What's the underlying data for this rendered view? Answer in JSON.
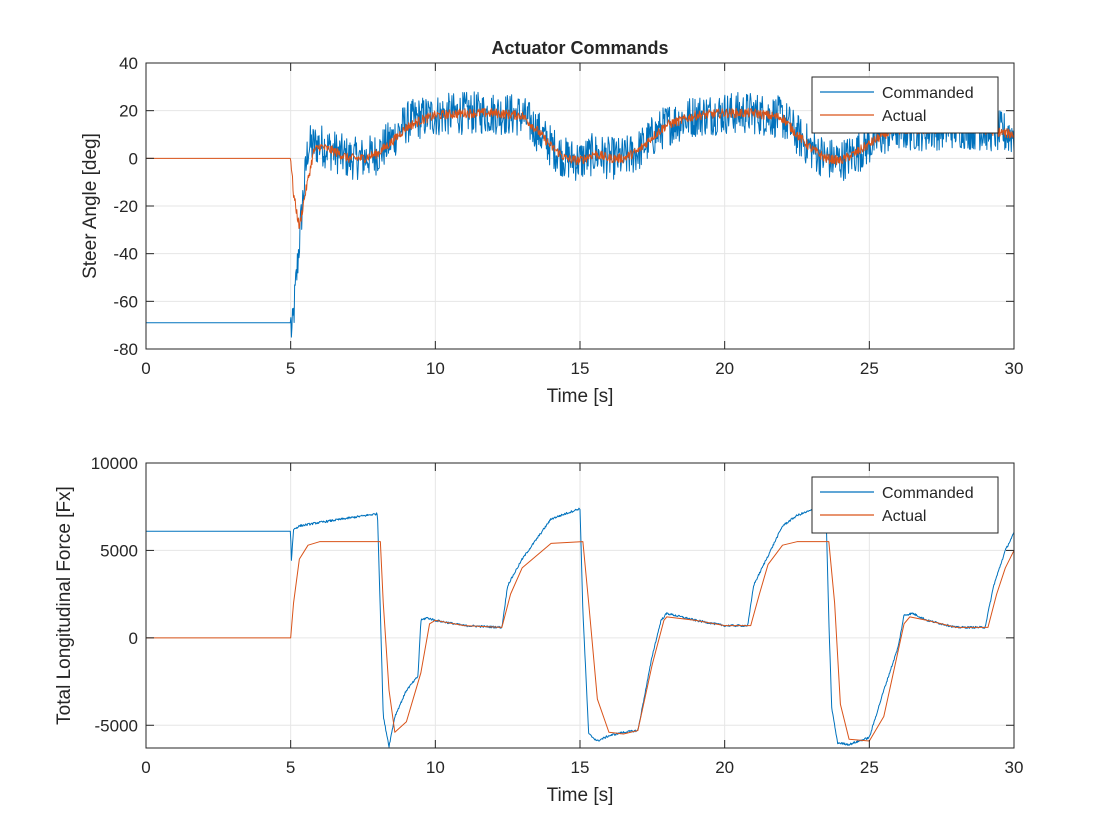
{
  "chart_data": [
    {
      "type": "line",
      "title": "Actuator Commands",
      "xlabel": "Time [s]",
      "ylabel": "Steer Angle [deg]",
      "xlim": [
        0,
        30
      ],
      "ylim": [
        -80,
        40
      ],
      "xticks": [
        "0",
        "5",
        "10",
        "15",
        "20",
        "25",
        "30"
      ],
      "yticks": [
        "-80",
        "-60",
        "-40",
        "-20",
        "0",
        "20",
        "40"
      ],
      "grid": true,
      "legend_position": "top-right",
      "series": [
        {
          "name": "Commanded",
          "color": "#0072bd",
          "x": [
            0,
            5,
            5.05,
            5.2,
            5.4,
            5.6,
            6,
            6.5,
            7,
            7.5,
            8,
            8.5,
            9,
            9.5,
            10,
            11,
            12,
            13,
            13.5,
            14,
            14.5,
            15,
            15.5,
            16,
            16.5,
            17,
            17.5,
            18,
            19,
            20,
            21,
            22,
            22.5,
            23,
            23.5,
            24,
            24.5,
            25,
            25.5,
            26,
            27,
            28,
            29,
            30
          ],
          "y": [
            -69,
            -69,
            -74,
            -50,
            -20,
            5,
            6,
            3,
            0,
            0,
            2,
            8,
            15,
            17,
            18,
            19,
            19,
            18,
            12,
            5,
            0,
            -1,
            2,
            0,
            0,
            3,
            9,
            14,
            18,
            19,
            19,
            17,
            10,
            4,
            0,
            -1,
            2,
            6,
            10,
            12,
            12,
            13,
            12,
            10
          ],
          "noise_amplitude": 9
        },
        {
          "name": "Actual",
          "color": "#d95319",
          "x": [
            0,
            5,
            5.1,
            5.3,
            5.5,
            5.8,
            6,
            6.5,
            7,
            7.5,
            8,
            8.5,
            9,
            9.5,
            10,
            11,
            12,
            13,
            13.5,
            14,
            14.5,
            15,
            15.5,
            16,
            16.5,
            17,
            17.5,
            18,
            19,
            20,
            21,
            22,
            22.5,
            23,
            23.5,
            24,
            24.5,
            25,
            25.5,
            26,
            27,
            28,
            29,
            30
          ],
          "y": [
            0,
            0,
            -15,
            -29,
            -15,
            3,
            5,
            3,
            0,
            0,
            2,
            7,
            13,
            16,
            18,
            19,
            19,
            18,
            12,
            5,
            0,
            -1,
            2,
            0,
            0,
            3,
            9,
            14,
            18,
            19,
            19,
            17,
            10,
            4,
            0,
            -1,
            2,
            6,
            10,
            12,
            12,
            13,
            12,
            10
          ],
          "noise_amplitude": 2
        }
      ]
    },
    {
      "type": "line",
      "title": "",
      "xlabel": "Time [s]",
      "ylabel": "Total Longitudinal Force [Fx]",
      "xlim": [
        0,
        30
      ],
      "ylim": [
        -6300,
        10000
      ],
      "xticks": [
        "0",
        "5",
        "10",
        "15",
        "20",
        "25",
        "30"
      ],
      "yticks": [
        "-5000",
        "0",
        "5000",
        "10000"
      ],
      "grid": true,
      "legend_position": "top-right",
      "series": [
        {
          "name": "Commanded",
          "color": "#0072bd",
          "x": [
            0,
            5,
            5.02,
            5.1,
            5.3,
            6,
            7,
            8,
            8.1,
            8.2,
            8.4,
            8.6,
            9.0,
            9.4,
            9.5,
            9.7,
            10,
            11,
            12.3,
            12.5,
            13,
            14,
            15,
            15.1,
            15.3,
            15.6,
            16,
            16.5,
            17.0,
            17.5,
            17.8,
            18,
            19,
            20,
            20.8,
            21.0,
            21.5,
            22,
            22.5,
            23,
            23.5,
            23.6,
            23.7,
            23.9,
            24.3,
            25,
            25.5,
            26,
            26.2,
            26.5,
            27,
            28,
            29.0,
            29.3,
            29.7,
            30
          ],
          "y": [
            6100,
            6100,
            4300,
            6200,
            6400,
            6600,
            6850,
            7100,
            1500,
            -4500,
            -6200,
            -4500,
            -3000,
            -2200,
            1000,
            1150,
            1000,
            700,
            600,
            3000,
            4500,
            6800,
            7400,
            1500,
            -5500,
            -5900,
            -5600,
            -5400,
            -5300,
            -1000,
            1000,
            1400,
            1000,
            700,
            700,
            3000,
            4700,
            6400,
            7000,
            7300,
            7400,
            1000,
            -4000,
            -6000,
            -6100,
            -5700,
            -3000,
            -500,
            1300,
            1400,
            1000,
            600,
            600,
            3000,
            5000,
            6000
          ],
          "noise_amplitude": 60
        },
        {
          "name": "Actual",
          "color": "#d95319",
          "x": [
            0,
            5,
            5.1,
            5.3,
            5.6,
            6,
            7,
            8.1,
            8.2,
            8.4,
            8.6,
            9.0,
            9.5,
            9.8,
            10,
            11,
            12.3,
            12.6,
            13,
            14,
            15.1,
            15.3,
            15.6,
            16,
            16.5,
            17.0,
            17.5,
            17.9,
            18,
            19,
            20,
            20.9,
            21.2,
            21.5,
            22,
            22.5,
            23.6,
            23.8,
            24,
            24.3,
            25,
            25.5,
            26.2,
            26.4,
            27,
            28,
            29.1,
            29.4,
            29.7,
            30,
            30.0
          ],
          "y": [
            0,
            0,
            2000,
            4500,
            5300,
            5500,
            5500,
            5500,
            2000,
            -3000,
            -5400,
            -4800,
            -2000,
            800,
            1000,
            700,
            600,
            2500,
            4000,
            5400,
            5500,
            2000,
            -3500,
            -5400,
            -5500,
            -5300,
            -1500,
            1000,
            1200,
            1000,
            700,
            700,
            2500,
            4200,
            5300,
            5500,
            5500,
            2000,
            -3800,
            -5800,
            -5900,
            -4500,
            800,
            1200,
            1000,
            600,
            600,
            2500,
            4000,
            5000,
            0
          ]
        }
      ]
    }
  ]
}
